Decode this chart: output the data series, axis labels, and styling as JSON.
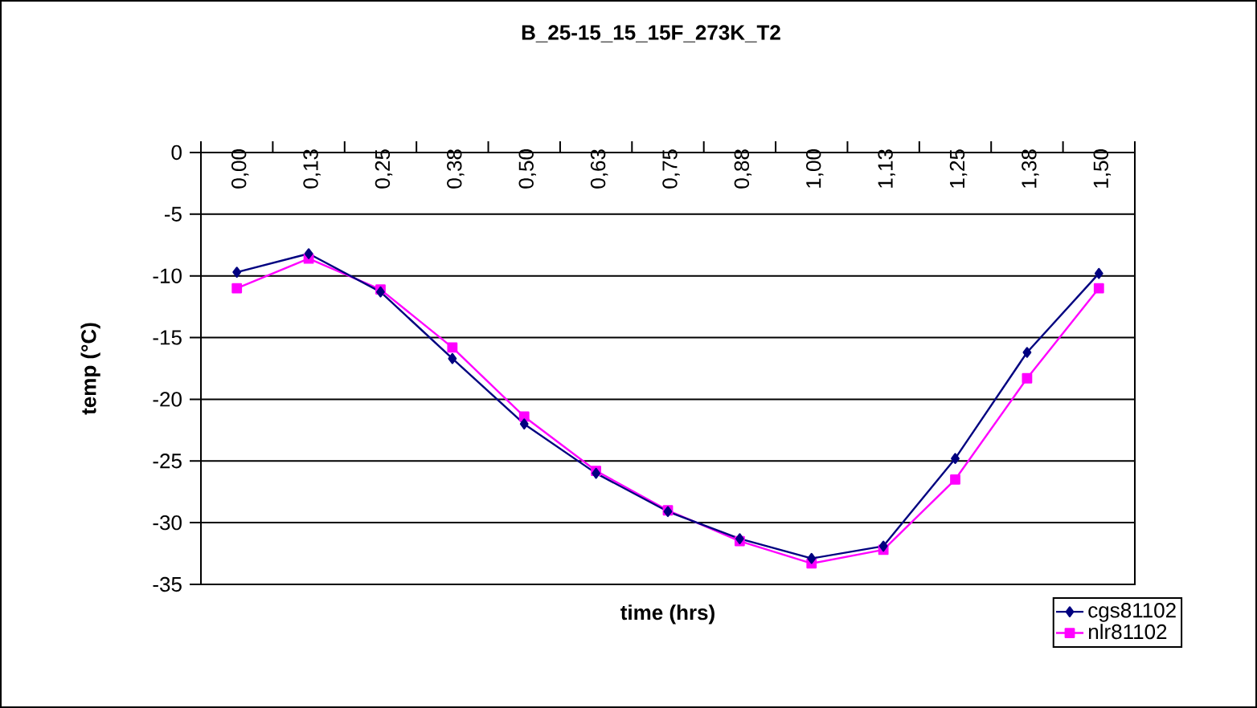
{
  "chart_data": {
    "type": "line",
    "title": "B_25-15_15_15F_273K_T2",
    "xlabel": "time (hrs)",
    "ylabel": "temp (°C)",
    "categories": [
      "0,00",
      "0,13",
      "0,25",
      "0,38",
      "0,50",
      "0,63",
      "0,75",
      "0,88",
      "1,00",
      "1,13",
      "1,25",
      "1,38",
      "1,50"
    ],
    "series": [
      {
        "name": "cgs81102",
        "color": "#000080",
        "marker": "diamond",
        "values": [
          -9.7,
          -8.2,
          -11.3,
          -16.7,
          -22,
          -26,
          -29.1,
          -31.3,
          -32.9,
          -31.9,
          -24.8,
          -16.2,
          -9.8
        ]
      },
      {
        "name": "nlr81102",
        "color": "#ff00ff",
        "marker": "square",
        "values": [
          -11,
          -8.6,
          -11.1,
          -15.8,
          -21.4,
          -25.8,
          -29,
          -31.5,
          -33.3,
          -32.2,
          -26.5,
          -18.3,
          -11
        ]
      }
    ],
    "ylim": [
      -35,
      0
    ],
    "yticks": [
      -35,
      -30,
      -25,
      -20,
      -15,
      -10,
      -5,
      0
    ],
    "grid": "y",
    "legend": "bottom right"
  }
}
